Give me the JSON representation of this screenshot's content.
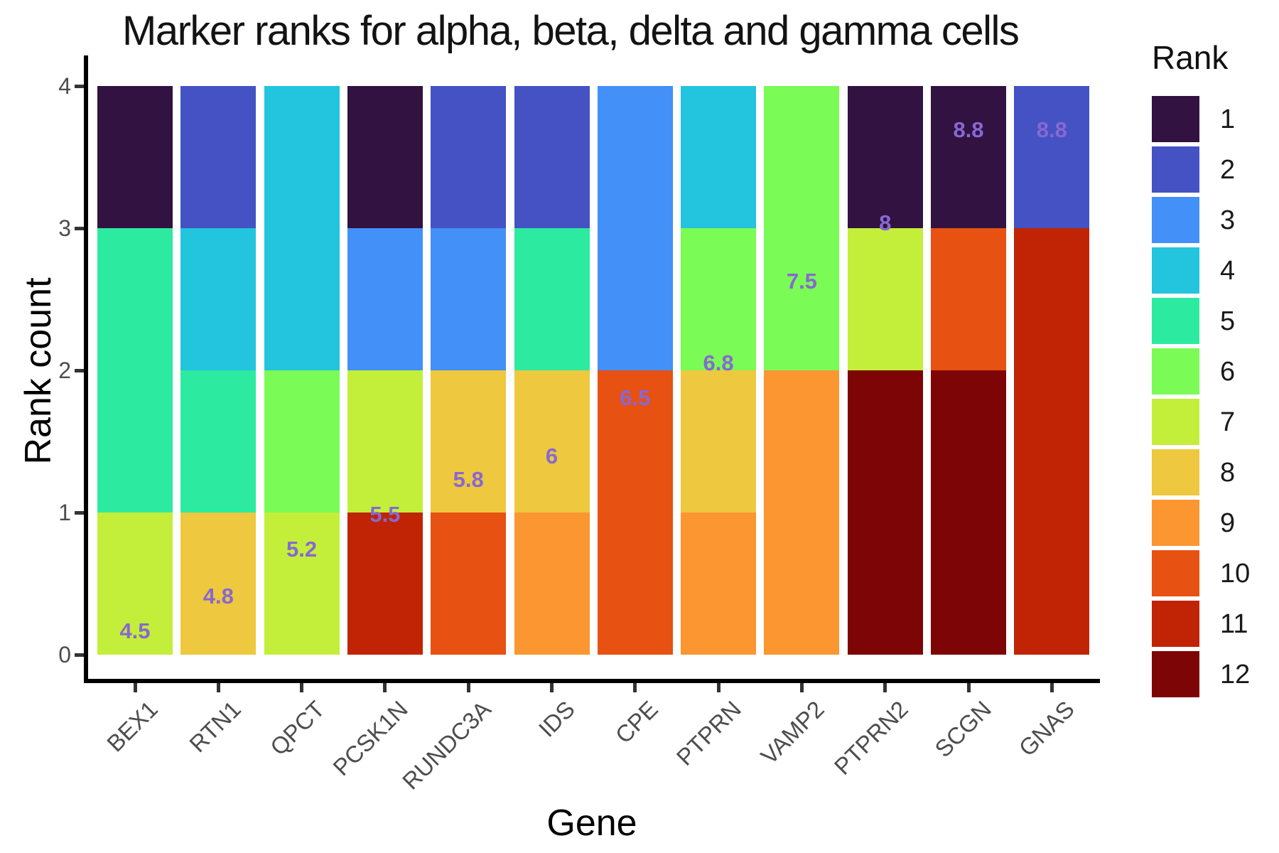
{
  "figure": {
    "title": "Marker ranks for alpha, beta, delta and gamma cells",
    "x_axis_title": "Gene",
    "y_axis_title": "Rank count",
    "legend_title": "Rank"
  },
  "chart_data": {
    "type": "bar",
    "stacked": true,
    "title": "Marker ranks for alpha, beta, delta and gamma cells",
    "xlabel": "Gene",
    "ylabel": "Rank count",
    "ylim": [
      0,
      4
    ],
    "yticks": [
      "0",
      "1",
      "2",
      "3",
      "4"
    ],
    "grid": false,
    "legend_position": "right",
    "legend_title": "Rank",
    "legend_entries": [
      "1",
      "2",
      "3",
      "4",
      "5",
      "6",
      "7",
      "8",
      "9",
      "10",
      "11",
      "12"
    ],
    "rank_colors": {
      "1": "#321240",
      "2": "#4452C4",
      "3": "#4390F8",
      "4": "#23C4DD",
      "5": "#2CEBA1",
      "6": "#7BFB55",
      "7": "#C3EF3A",
      "8": "#EEC83E",
      "9": "#FB9630",
      "10": "#E75112",
      "11": "#C02404",
      "12": "#7E0505"
    },
    "value_label_color": "#8768D2",
    "axis_text_color": "#4d4d4d",
    "tick_color": "#333333",
    "axis_line_color": "#000000",
    "categories": [
      "BEX1",
      "RTN1",
      "QPCT",
      "PCSK1N",
      "RUNDC3A",
      "IDS",
      "CPE",
      "PTPRN",
      "VAMP2",
      "PTPRN2",
      "SCGN",
      "GNAS"
    ],
    "bars": [
      {
        "gene": "BEX1",
        "mean_rank_label": "4.5",
        "label_y": 0.165,
        "segments": [
          {
            "rank": 7,
            "count": 1
          },
          {
            "rank": 5,
            "count": 2
          },
          {
            "rank": 1,
            "count": 1
          }
        ]
      },
      {
        "gene": "RTN1",
        "mean_rank_label": "4.8",
        "label_y": 0.41,
        "segments": [
          {
            "rank": 8,
            "count": 1
          },
          {
            "rank": 5,
            "count": 1
          },
          {
            "rank": 4,
            "count": 1
          },
          {
            "rank": 2,
            "count": 1
          }
        ]
      },
      {
        "gene": "QPCT",
        "mean_rank_label": "5.2",
        "label_y": 0.74,
        "segments": [
          {
            "rank": 7,
            "count": 1
          },
          {
            "rank": 6,
            "count": 1
          },
          {
            "rank": 4,
            "count": 2
          }
        ]
      },
      {
        "gene": "PCSK1N",
        "mean_rank_label": "5.5",
        "label_y": 0.985,
        "segments": [
          {
            "rank": 11,
            "count": 1
          },
          {
            "rank": 7,
            "count": 1
          },
          {
            "rank": 3,
            "count": 1
          },
          {
            "rank": 1,
            "count": 1
          }
        ]
      },
      {
        "gene": "RUNDC3A",
        "mean_rank_label": "5.8",
        "label_y": 1.23,
        "segments": [
          {
            "rank": 10,
            "count": 1
          },
          {
            "rank": 8,
            "count": 1
          },
          {
            "rank": 3,
            "count": 1
          },
          {
            "rank": 2,
            "count": 1
          }
        ]
      },
      {
        "gene": "IDS",
        "mean_rank_label": "6",
        "label_y": 1.395,
        "segments": [
          {
            "rank": 9,
            "count": 1
          },
          {
            "rank": 8,
            "count": 1
          },
          {
            "rank": 5,
            "count": 1
          },
          {
            "rank": 2,
            "count": 1
          }
        ]
      },
      {
        "gene": "CPE",
        "mean_rank_label": "6.5",
        "label_y": 1.805,
        "segments": [
          {
            "rank": 10,
            "count": 2
          },
          {
            "rank": 3,
            "count": 2
          }
        ]
      },
      {
        "gene": "PTPRN",
        "mean_rank_label": "6.8",
        "label_y": 2.05,
        "segments": [
          {
            "rank": 9,
            "count": 1
          },
          {
            "rank": 8,
            "count": 1
          },
          {
            "rank": 6,
            "count": 1
          },
          {
            "rank": 4,
            "count": 1
          }
        ]
      },
      {
        "gene": "VAMP2",
        "mean_rank_label": "7.5",
        "label_y": 2.625,
        "segments": [
          {
            "rank": 9,
            "count": 2
          },
          {
            "rank": 6,
            "count": 2
          }
        ]
      },
      {
        "gene": "PTPRN2",
        "mean_rank_label": "8",
        "label_y": 3.035,
        "segments": [
          {
            "rank": 12,
            "count": 2
          },
          {
            "rank": 7,
            "count": 1
          },
          {
            "rank": 1,
            "count": 1
          }
        ]
      },
      {
        "gene": "SCGN",
        "mean_rank_label": "8.8",
        "label_y": 3.69,
        "segments": [
          {
            "rank": 12,
            "count": 2
          },
          {
            "rank": 10,
            "count": 1
          },
          {
            "rank": 1,
            "count": 1
          }
        ]
      },
      {
        "gene": "GNAS",
        "mean_rank_label": "8.8",
        "label_y": 3.69,
        "segments": [
          {
            "rank": 11,
            "count": 3
          },
          {
            "rank": 2,
            "count": 1
          }
        ]
      }
    ]
  }
}
